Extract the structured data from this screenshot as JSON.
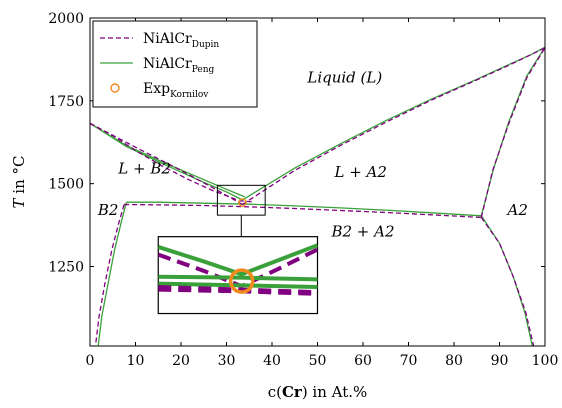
{
  "chart_data": {
    "type": "line",
    "title": "",
    "xlabel": {
      "prefix": "c(",
      "bold": "Cr",
      "suffix": ") in At.%"
    },
    "ylabel": {
      "italic": "T",
      "rest": " in °C"
    },
    "xlim": [
      0,
      100
    ],
    "ylim": [
      1010,
      2000
    ],
    "x_ticks": [
      0,
      10,
      20,
      30,
      40,
      50,
      60,
      70,
      80,
      90,
      100
    ],
    "y_ticks": [
      1250,
      1500,
      1750,
      2000
    ],
    "grid": false,
    "legend_position": "top-left",
    "colors": {
      "dupin": "#800080",
      "peng": "#3aa03a",
      "exp": "#f08a1d"
    },
    "legend": [
      {
        "name": "NiAlCr",
        "sub": "Dupin",
        "style": "dashed"
      },
      {
        "name": "NiAlCr",
        "sub": "Peng",
        "style": "solid"
      },
      {
        "name": "Exp",
        "sub": "Kornilov",
        "style": "marker"
      }
    ],
    "region_labels": [
      {
        "text": "Liquid (L)",
        "x": 56,
        "y": 1805
      },
      {
        "text": "L + B2",
        "x": 12,
        "y": 1530
      },
      {
        "text": "L + A2",
        "x": 59.5,
        "y": 1520
      },
      {
        "text": "B2",
        "x": 4,
        "y": 1405
      },
      {
        "text": "A2",
        "x": 94,
        "y": 1405
      },
      {
        "text": "B2 + A2",
        "x": 60,
        "y": 1340
      }
    ],
    "series": [
      {
        "name": "NiAlCr Dupin",
        "style": "dashed",
        "curves": [
          {
            "x": [
              0,
              10,
              20,
              28,
              33.5
            ],
            "y": [
              1682,
              1610,
              1540,
              1480,
              1437
            ]
          },
          {
            "x": [
              33.5,
              45,
              55,
              65,
              75,
              85,
              92,
              97,
              100
            ],
            "y": [
              1437,
              1540,
              1615,
              1685,
              1752,
              1813,
              1857,
              1890,
              1910
            ]
          },
          {
            "x": [
              0,
              5,
              10,
              16,
              22,
              27,
              33,
              36
            ],
            "y": [
              1682,
              1645,
              1600,
              1552,
              1510,
              1479,
              1448,
              1445
            ]
          },
          {
            "x": [
              7.5,
              15,
              25,
              35,
              45,
              55,
              65,
              75,
              86
            ],
            "y": [
              1437,
              1436,
              1434,
              1430,
              1425,
              1419,
              1413,
              1406,
              1398
            ]
          },
          {
            "x": [
              86,
              88.5,
              92,
              96,
              100
            ],
            "y": [
              1398,
              1540,
              1680,
              1820,
              1910
            ]
          },
          {
            "x": [
              7.5,
              6.3,
              4.8,
              3.3,
              2.0,
              1.2
            ],
            "y": [
              1437,
              1380,
              1300,
              1200,
              1100,
              1010
            ]
          },
          {
            "x": [
              86,
              90,
              93,
              95.8,
              97.5
            ],
            "y": [
              1398,
              1320,
              1220,
              1110,
              1010
            ]
          }
        ]
      },
      {
        "name": "NiAlCr Peng",
        "style": "solid",
        "curves": [
          {
            "x": [
              0,
              8,
              16,
              24,
              30,
              33.5
            ],
            "y": [
              1682,
              1612,
              1560,
              1510,
              1475,
              1451
            ]
          },
          {
            "x": [
              33.5,
              45,
              55,
              65,
              75,
              85,
              92,
              97,
              100
            ],
            "y": [
              1451,
              1547,
              1620,
              1690,
              1755,
              1815,
              1859,
              1890,
              1912
            ]
          },
          {
            "x": [
              0,
              8,
              16,
              24,
              30,
              34
            ],
            "y": [
              1682,
              1615,
              1565,
              1518,
              1483,
              1460
            ]
          },
          {
            "x": [
              8,
              15,
              25,
              35,
              45,
              55,
              65,
              75,
              86
            ],
            "y": [
              1444,
              1444,
              1441,
              1438,
              1433,
              1427,
              1420,
              1412,
              1403
            ]
          },
          {
            "x": [
              86,
              88.7,
              92,
              96,
              100
            ],
            "y": [
              1403,
              1545,
              1685,
              1825,
              1912
            ]
          },
          {
            "x": [
              8,
              6.8,
              5.4,
              4.0,
              2.6,
              1.8
            ],
            "y": [
              1444,
              1380,
              1300,
              1200,
              1100,
              1010
            ]
          },
          {
            "x": [
              86,
              90,
              93,
              95.6,
              97.2
            ],
            "y": [
              1403,
              1320,
              1220,
              1110,
              1010
            ]
          }
        ]
      },
      {
        "name": "Exp Kornilov",
        "style": "marker",
        "points": [
          {
            "x": 33.5,
            "y": 1443
          }
        ]
      }
    ],
    "inset": {
      "source_window": {
        "x": [
          28,
          38.5
        ],
        "y": [
          1405,
          1495
        ]
      },
      "target_window": {
        "x": [
          15,
          50
        ],
        "y": [
          1108,
          1340
        ]
      },
      "curves": [
        {
          "series": "dupin",
          "x": [
            28,
            31,
            33.5,
            36,
            38.5
          ],
          "y": [
            1474,
            1455,
            1437,
            1458,
            1480
          ]
        },
        {
          "series": "peng",
          "x": [
            28,
            31,
            33.5,
            36,
            38.5
          ],
          "y": [
            1483,
            1466,
            1451,
            1468,
            1485
          ]
        },
        {
          "series": "peng",
          "x": [
            28,
            33.5,
            38.5
          ],
          "y": [
            1448,
            1447,
            1445
          ]
        },
        {
          "series": "dupin",
          "x": [
            28,
            33.5,
            38.5
          ],
          "y": [
            1433,
            1431,
            1428
          ]
        },
        {
          "series": "peng",
          "x": [
            28,
            33.5,
            38.5
          ],
          "y": [
            1440,
            1438,
            1436
          ]
        },
        {
          "series": "dupin",
          "x": [
            28,
            33.5,
            38.5
          ],
          "y": [
            1436,
            1433,
            1430
          ]
        }
      ],
      "marker": {
        "x": 33.5,
        "y": 1443
      }
    }
  }
}
